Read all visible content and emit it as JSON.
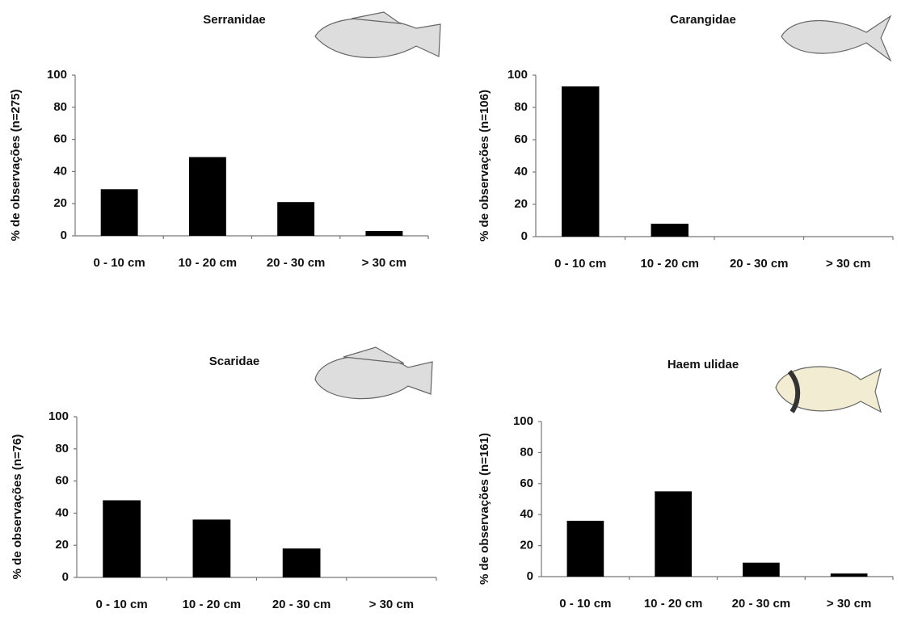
{
  "chart_data": [
    {
      "type": "bar",
      "title": "Serranidae",
      "ylabel": "% de observações (n=275)",
      "categories": [
        "0 - 10 cm",
        "10 - 20 cm",
        "20 - 30 cm",
        "> 30 cm"
      ],
      "values": [
        29,
        49,
        21,
        3
      ],
      "color": "#000000",
      "ylim": [
        0,
        100
      ],
      "yticks": [
        0,
        20,
        40,
        60,
        80,
        100
      ]
    },
    {
      "type": "bar",
      "title": "Carangidae",
      "ylabel": "% de observações (n=106)",
      "categories": [
        "0 - 10 cm",
        "10 - 20 cm",
        "20 - 30 cm",
        "> 30 cm"
      ],
      "values": [
        93,
        8,
        0,
        0
      ],
      "color": "#000000",
      "ylim": [
        0,
        100
      ],
      "yticks": [
        0,
        20,
        40,
        60,
        80,
        100
      ]
    },
    {
      "type": "bar",
      "title": "Scaridae",
      "ylabel": "% de observações (n=76)",
      "categories": [
        "0 - 10 cm",
        "10 - 20 cm",
        "20 - 30 cm",
        "> 30 cm"
      ],
      "values": [
        48,
        36,
        18,
        0
      ],
      "color": "#000000",
      "ylim": [
        0,
        100
      ],
      "yticks": [
        0,
        20,
        40,
        60,
        80,
        100
      ]
    },
    {
      "type": "bar",
      "title": "Haem ulidae",
      "ylabel": "% de observações (n=161)",
      "categories": [
        "0 - 10 cm",
        "10 - 20 cm",
        "20 - 30 cm",
        "> 30 cm"
      ],
      "values": [
        36,
        55,
        9,
        2
      ],
      "color": "#000000",
      "ylim": [
        0,
        100
      ],
      "yticks": [
        0,
        20,
        40,
        60,
        80,
        100
      ]
    }
  ]
}
